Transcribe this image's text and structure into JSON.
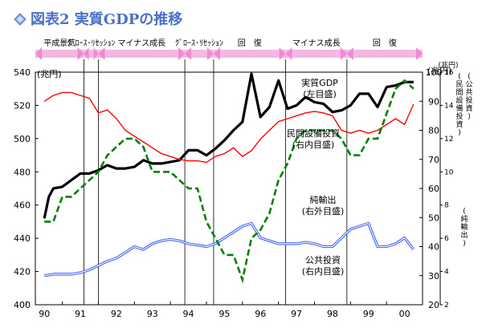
{
  "title_text": "図表2 実質GDPの推移",
  "chart_data": {
    "type": "line",
    "title": "図表2 実質GDPの推移",
    "x_tick_labels": [
      "90",
      "91",
      "92",
      "93",
      "94",
      "95",
      "96",
      "97",
      "98",
      "99",
      "00"
    ],
    "x_range": [
      1989.75,
      2000.5
    ],
    "left_axis": {
      "unit": "(兆円)",
      "range": [
        400,
        540
      ],
      "ticks": [
        400,
        420,
        440,
        460,
        480,
        500,
        520,
        540
      ]
    },
    "right_axis1": {
      "unit": "(兆円)",
      "range": [
        20,
        100
      ],
      "ticks": [
        20,
        30,
        40,
        50,
        60,
        70,
        80,
        90,
        100
      ],
      "side_label": "(公共投資)(民間設備投資)"
    },
    "right_axis2": {
      "unit": "(兆円)",
      "range": [
        2,
        16
      ],
      "ticks": [
        2,
        4,
        6,
        8,
        10,
        12,
        14,
        16
      ],
      "side_label": "(純輸出)"
    },
    "phases": [
      {
        "label": "平成景気",
        "start": 1989.75,
        "end": 1991.1
      },
      {
        "label": "ｸﾞﾛｰｽ･ﾘｾｯｼｮﾝ",
        "start": 1991.1,
        "end": 1991.5
      },
      {
        "label": "マイナス成長",
        "start": 1991.5,
        "end": 1993.9
      },
      {
        "label": "ｸﾞﾛｰｽ･ﾘｾｯｼｮﾝ",
        "start": 1993.9,
        "end": 1994.7
      },
      {
        "label": "回　復",
        "start": 1994.7,
        "end": 1996.7
      },
      {
        "label": "マイナス成長",
        "start": 1996.7,
        "end": 1998.4
      },
      {
        "label": "回　復",
        "start": 1998.4,
        "end": 2000.5
      }
    ],
    "series": [
      {
        "name": "実質GDP",
        "axis_note": "(左目盛)",
        "axis": "left",
        "color": "#000000",
        "style": "solid-thick",
        "x": [
          1990.0,
          1990.125,
          1990.25,
          1990.5,
          1990.75,
          1991.0,
          1991.25,
          1991.5,
          1991.75,
          1992.0,
          1992.25,
          1992.5,
          1992.75,
          1993.0,
          1993.25,
          1993.5,
          1993.75,
          1994.0,
          1994.25,
          1994.5,
          1994.75,
          1995.0,
          1995.25,
          1995.5,
          1995.75,
          1996.0,
          1996.25,
          1996.5,
          1996.75,
          1997.0,
          1997.25,
          1997.5,
          1997.75,
          1998.0,
          1998.25,
          1998.5,
          1998.75,
          1999.0,
          1999.25,
          1999.5,
          1999.75,
          2000.0,
          2000.25
        ],
        "values": [
          452,
          465,
          470,
          471,
          475,
          479,
          479,
          481,
          484,
          482,
          482,
          483,
          487,
          485,
          485,
          486,
          487,
          493,
          493,
          490,
          494,
          499,
          505,
          510,
          539,
          513,
          519,
          535,
          518,
          520,
          525,
          522,
          521,
          516,
          517,
          520,
          527,
          527,
          519,
          531,
          532,
          534,
          534
        ]
      },
      {
        "name": "民間設備投資",
        "axis_note": "(右内目盛)",
        "axis": "right1",
        "color": "#ff0000",
        "style": "solid-thin",
        "x": [
          1990.0,
          1990.25,
          1990.5,
          1990.75,
          1991.0,
          1991.25,
          1991.5,
          1991.75,
          1992.0,
          1992.25,
          1992.5,
          1992.75,
          1993.0,
          1993.25,
          1993.5,
          1993.75,
          1994.0,
          1994.25,
          1994.5,
          1994.75,
          1995.0,
          1995.25,
          1995.5,
          1995.75,
          1996.0,
          1996.25,
          1996.5,
          1996.75,
          1997.0,
          1997.25,
          1997.5,
          1997.75,
          1998.0,
          1998.25,
          1998.5,
          1998.75,
          1999.0,
          1999.25,
          1999.5,
          1999.75,
          2000.0,
          2000.25
        ],
        "values": [
          90,
          92,
          93,
          93,
          92,
          91,
          86,
          87,
          84,
          80,
          78,
          76,
          74,
          72,
          71,
          70,
          69.5,
          69.5,
          69,
          71,
          72,
          74,
          71,
          73,
          77,
          80,
          83,
          84,
          85,
          86,
          86.5,
          86,
          85,
          80,
          79,
          80,
          79,
          80,
          82,
          84,
          82,
          89
        ]
      },
      {
        "name": "公共投資",
        "axis_note": "(右内目盛)",
        "axis": "right1",
        "color": "#3355ee",
        "style": "double",
        "x": [
          1990.0,
          1990.25,
          1990.5,
          1990.75,
          1991.0,
          1991.25,
          1991.5,
          1991.75,
          1992.0,
          1992.25,
          1992.5,
          1992.75,
          1993.0,
          1993.25,
          1993.5,
          1993.75,
          1994.0,
          1994.25,
          1994.5,
          1994.75,
          1995.0,
          1995.25,
          1995.5,
          1995.75,
          1996.0,
          1996.25,
          1996.5,
          1996.75,
          1997.0,
          1997.25,
          1997.5,
          1997.75,
          1998.0,
          1998.25,
          1998.5,
          1998.75,
          1999.0,
          1999.25,
          1999.5,
          1999.75,
          2000.0,
          2000.25
        ],
        "values": [
          30,
          30.5,
          30.5,
          30.5,
          31,
          32,
          33.5,
          35,
          36,
          38,
          40,
          39,
          41,
          42,
          42.5,
          42,
          41,
          40.5,
          40,
          41,
          43,
          45,
          47,
          48,
          43,
          42,
          41,
          41,
          41,
          41.5,
          41,
          40,
          40,
          43,
          46,
          47,
          48,
          40,
          40,
          41,
          43,
          39
        ]
      },
      {
        "name": "純輸出",
        "axis_note": "(右外目盛)",
        "axis": "right2",
        "color": "#008000",
        "style": "dashed",
        "x": [
          1990.0,
          1990.25,
          1990.5,
          1990.75,
          1991.0,
          1991.25,
          1991.5,
          1991.75,
          1992.0,
          1992.25,
          1992.5,
          1992.75,
          1993.0,
          1993.25,
          1993.5,
          1993.75,
          1994.0,
          1994.25,
          1994.5,
          1994.75,
          1995.0,
          1995.25,
          1995.5,
          1995.75,
          1996.0,
          1996.25,
          1996.5,
          1996.75,
          1997.0,
          1997.25,
          1997.5,
          1997.75,
          1998.0,
          1998.25,
          1998.5,
          1998.75,
          1999.0,
          1999.25,
          1999.5,
          1999.75,
          2000.0,
          2000.25
        ],
        "values": [
          7,
          7,
          8.5,
          8.5,
          9,
          9.5,
          10,
          11,
          11.5,
          12,
          12,
          11.5,
          10,
          10,
          10,
          9.5,
          9,
          9,
          7,
          6,
          5,
          5,
          3.5,
          6,
          6.5,
          7.5,
          9.5,
          10.5,
          12,
          12.5,
          12.5,
          12.5,
          12.5,
          12,
          11,
          11,
          12,
          12,
          13.5,
          15,
          15.5,
          15
        ]
      }
    ],
    "annotations": [
      {
        "id": "gdp",
        "line1": "実質GDP",
        "line2": "(左目盛)"
      },
      {
        "id": "capex",
        "line1": "民間設備投資",
        "line2": "(右内目盛)"
      },
      {
        "id": "netexp",
        "line1": "純輸出",
        "line2": "(右外目盛)"
      },
      {
        "id": "public",
        "line1": "公共投資",
        "line2": "(右内目盛)"
      }
    ],
    "grid": false,
    "divider_years": [
      1991.1,
      1991.5,
      1993.9,
      1994.7,
      1996.7,
      1998.4
    ]
  }
}
